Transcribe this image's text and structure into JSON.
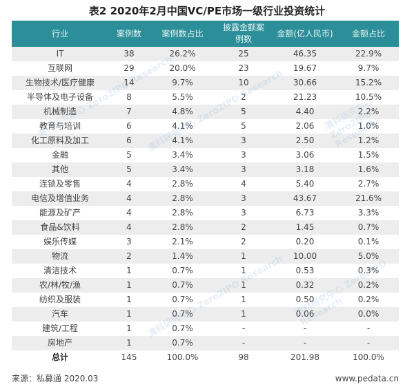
{
  "title": "表2  2020年2月中国VC/PE市场一级行业投资统计",
  "table": {
    "headers": [
      "行业",
      "案例数",
      "案例数占比",
      "披露金额案例数",
      "金额(亿人民币)",
      "金额占比"
    ],
    "header_disclosed_line1": "披露金额案",
    "header_disclosed_line2": "例数",
    "rows": [
      [
        "IT",
        "38",
        "26.2%",
        "25",
        "46.35",
        "22.9%"
      ],
      [
        "互联网",
        "29",
        "20.0%",
        "23",
        "19.67",
        "9.7%"
      ],
      [
        "生物技术/医疗健康",
        "14",
        "9.7%",
        "10",
        "30.66",
        "15.2%"
      ],
      [
        "半导体及电子设备",
        "8",
        "5.5%",
        "2",
        "21.23",
        "10.5%"
      ],
      [
        "机械制造",
        "7",
        "4.8%",
        "5",
        "4.40",
        "2.2%"
      ],
      [
        "教育与培训",
        "6",
        "4.1%",
        "5",
        "2.06",
        "1.0%"
      ],
      [
        "化工原料及加工",
        "6",
        "4.1%",
        "3",
        "2.50",
        "1.2%"
      ],
      [
        "金融",
        "5",
        "3.4%",
        "3",
        "3.06",
        "1.5%"
      ],
      [
        "其他",
        "5",
        "3.4%",
        "3",
        "3.18",
        "1.6%"
      ],
      [
        "连锁及零售",
        "4",
        "2.8%",
        "4",
        "5.40",
        "2.7%"
      ],
      [
        "电信及增值业务",
        "4",
        "2.8%",
        "3",
        "43.67",
        "21.6%"
      ],
      [
        "能源及矿产",
        "4",
        "2.8%",
        "3",
        "6.73",
        "3.3%"
      ],
      [
        "食品&饮料",
        "4",
        "2.8%",
        "2",
        "1.45",
        "0.7%"
      ],
      [
        "娱乐传媒",
        "3",
        "2.1%",
        "2",
        "0.20",
        "0.1%"
      ],
      [
        "物流",
        "2",
        "1.4%",
        "1",
        "10.00",
        "5.0%"
      ],
      [
        "清洁技术",
        "1",
        "0.7%",
        "1",
        "0.53",
        "0.3%"
      ],
      [
        "农/林/牧/渔",
        "1",
        "0.7%",
        "1",
        "0.32",
        "0.2%"
      ],
      [
        "纺织及服装",
        "1",
        "0.7%",
        "1",
        "0.50",
        "0.2%"
      ],
      [
        "汽车",
        "1",
        "0.7%",
        "1",
        "0.06",
        "0.0%"
      ],
      [
        "建筑/工程",
        "1",
        "0.7%",
        "-",
        "-",
        "-"
      ],
      [
        "房地产",
        "1",
        "0.7%",
        "-",
        "-",
        "-"
      ]
    ],
    "total": [
      "总计",
      "145",
      "100.0%",
      "98",
      "201.98",
      "100.0%"
    ]
  },
  "footer": {
    "source": "来源：私募通 2020.03",
    "website": "www.pedata.cn"
  },
  "watermark": {
    "text": "清科研究中心 Zero2IPO Research"
  },
  "colors": {
    "header_bg": "#2b8e98",
    "row_shade": "#ededed"
  }
}
